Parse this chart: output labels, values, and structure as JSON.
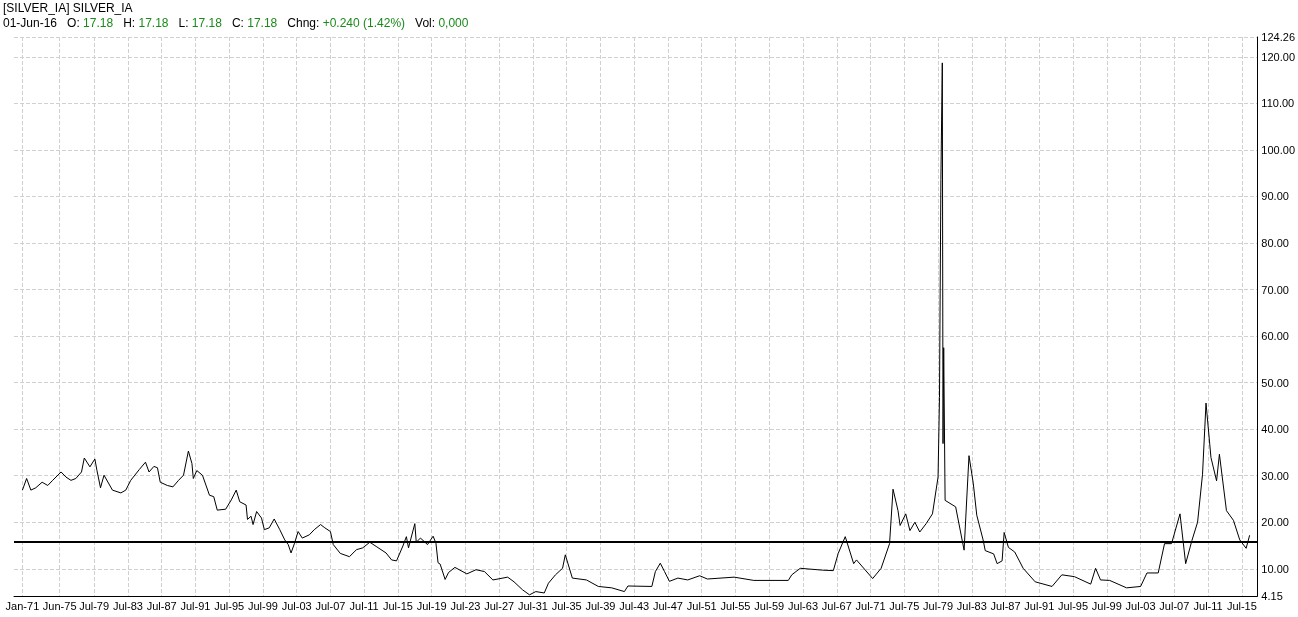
{
  "chart_data": {
    "type": "line",
    "title": "[SILVER_IA] SILVER_IA",
    "subtitle": "01-Jun-16   O: 17.18   H: 17.18   L: 17.18   C: 17.18   Chng: +0.240 (1.42%)   Vol: 0,000",
    "x": [
      "1871-01",
      "1871-07",
      "1872-01",
      "1872-08",
      "1873-05",
      "1874-01",
      "1874-08",
      "1875-08",
      "1876-03",
      "1876-10",
      "1877-05",
      "1878-01",
      "1878-05",
      "1879-01",
      "1879-08",
      "1879-11",
      "1880-04",
      "1880-09",
      "1881-09",
      "1882-09",
      "1883-04",
      "1883-11",
      "1884-11",
      "1885-08",
      "1886-01",
      "1886-08",
      "1887-01",
      "1887-05",
      "1888-03",
      "1888-11",
      "1889-07",
      "1890-02",
      "1890-09",
      "1891-02",
      "1891-04",
      "1891-09",
      "1892-05",
      "1893-03",
      "1893-09",
      "1894-02",
      "1895-02",
      "1895-10",
      "1896-05",
      "1896-10",
      "1897-07",
      "1897-09",
      "1898-02",
      "1898-05",
      "1898-10",
      "1899-05",
      "1899-09",
      "1900-04",
      "1900-11",
      "1901-07",
      "1902-02",
      "1902-07",
      "1902-11",
      "1903-04",
      "1903-09",
      "1904-03",
      "1905-01",
      "1905-08",
      "1906-05",
      "1906-11",
      "1907-07",
      "1907-11",
      "1908-09",
      "1909-10",
      "1910-08",
      "1911-05",
      "1912-03",
      "1913-01",
      "1914-02",
      "1914-10",
      "1915-05",
      "1916-02",
      "1916-07",
      "1916-10",
      "1917-07",
      "1917-09",
      "1918-03",
      "1919-01",
      "1919-09",
      "1920-01",
      "1920-04",
      "1920-07",
      "1921-02",
      "1921-07",
      "1922-04",
      "1923-09",
      "1924-10",
      "1925-10",
      "1926-10",
      "1928-07",
      "1929-04",
      "1930-04",
      "1931-02",
      "1931-11",
      "1932-11",
      "1933-05",
      "1934-03",
      "1935-01",
      "1935-05",
      "1936-03",
      "1937-11",
      "1939-04",
      "1940-11",
      "1942-05",
      "1942-10",
      "1945-08",
      "1946-01",
      "1946-08",
      "1947-02",
      "1947-09",
      "1948-09",
      "1949-11",
      "1951-04",
      "1952-03",
      "1955-05",
      "1957-09",
      "1961-10",
      "1962-03",
      "1963-03",
      "1965-11",
      "1967-02",
      "1967-09",
      "1968-07",
      "1969-07",
      "1969-11",
      "1971-10",
      "1972-10",
      "1973-10",
      "1974-03",
      "1974-10",
      "1975-01",
      "1975-09",
      "1976-03",
      "1976-10",
      "1977-05",
      "1978-02",
      "1978-11",
      "1979-07",
      "1979-09",
      "1979-11",
      "1980-01",
      "1980-02",
      "1980-03",
      "1980-05",
      "1981-08",
      "1982-08",
      "1983-03",
      "1983-09",
      "1984-02",
      "1984-11",
      "1985-02",
      "1986-02",
      "1986-07",
      "1987-02",
      "1987-05",
      "1987-11",
      "1988-08",
      "1989-08",
      "1991-01",
      "1993-01",
      "1994-03",
      "1995-09",
      "1997-08",
      "1998-03",
      "1998-10",
      "1999-11",
      "2001-11",
      "2003-07",
      "2004-04",
      "2005-08",
      "2006-05",
      "2007-03",
      "2008-03",
      "2008-11",
      "2009-08",
      "2010-04",
      "2010-11",
      "2011-04",
      "2011-11",
      "2012-07",
      "2012-11",
      "2013-09",
      "2014-07",
      "2015-04",
      "2016-01",
      "2016-06"
    ],
    "values": [
      26.9,
      29.4,
      26.9,
      27.4,
      28.6,
      27.9,
      29.0,
      30.8,
      29.7,
      29.0,
      29.4,
      30.8,
      33.8,
      31.9,
      33.6,
      31.1,
      27.4,
      30.1,
      26.9,
      26.3,
      26.9,
      29.0,
      31.3,
      32.9,
      30.8,
      32.0,
      31.7,
      28.6,
      27.9,
      27.6,
      29.0,
      30.1,
      35.3,
      32.6,
      29.4,
      31.1,
      30.1,
      25.8,
      25.5,
      22.6,
      22.8,
      24.8,
      26.9,
      24.4,
      23.7,
      20.6,
      21.3,
      19.5,
      22.3,
      20.9,
      18.4,
      18.8,
      20.7,
      18.4,
      16.2,
      15.2,
      13.4,
      15.5,
      18.0,
      16.6,
      17.3,
      18.4,
      19.5,
      18.8,
      18.0,
      15.2,
      13.3,
      12.6,
      14.1,
      14.5,
      15.7,
      14.7,
      13.4,
      11.9,
      11.7,
      14.9,
      16.9,
      14.5,
      19.7,
      15.7,
      16.6,
      15.2,
      17.0,
      15.5,
      11.3,
      11.0,
      7.7,
      9.2,
      10.3,
      8.9,
      9.8,
      9.4,
      7.6,
      8.2,
      7.2,
      5.5,
      4.4,
      5.1,
      4.8,
      6.9,
      8.7,
      10.1,
      13.0,
      8.0,
      7.6,
      6.2,
      5.9,
      5.1,
      6.3,
      6.2,
      9.4,
      11.2,
      9.4,
      7.3,
      8.0,
      7.6,
      8.5,
      7.8,
      8.2,
      7.5,
      7.5,
      8.7,
      10.1,
      9.7,
      9.6,
      13.3,
      16.9,
      11.1,
      11.9,
      7.9,
      10.1,
      15.4,
      27.1,
      22.5,
      19.3,
      21.8,
      18.2,
      20.0,
      17.9,
      19.7,
      21.8,
      29.7,
      46.8,
      93.7,
      118.7,
      36.9,
      57.5,
      24.7,
      23.3,
      14.0,
      34.3,
      28.4,
      21.5,
      16.2,
      13.9,
      13.2,
      11.1,
      11.7,
      17.8,
      14.6,
      13.6,
      10.1,
      7.2,
      6.2,
      8.7,
      8.3,
      6.7,
      10.1,
      7.6,
      7.5,
      5.9,
      6.2,
      9.1,
      9.1,
      15.4,
      15.4,
      21.8,
      11.1,
      16.1,
      20.0,
      30.3,
      45.6,
      33.9,
      28.9,
      34.6,
      22.5,
      20.4,
      16.2,
      14.4,
      17.2
    ],
    "color": "#000000",
    "xlim": [
      "1870-01",
      "2017-05"
    ],
    "xticks": [
      {
        "value": "1871-01",
        "label": "Jan-71"
      },
      {
        "value": "1875-06",
        "label": "Jun-75"
      },
      {
        "value": "1879-07",
        "label": "Jul-79"
      },
      {
        "value": "1883-07",
        "label": "Jul-83"
      },
      {
        "value": "1887-07",
        "label": "Jul-87"
      },
      {
        "value": "1891-07",
        "label": "Jul-91"
      },
      {
        "value": "1895-07",
        "label": "Jul-95"
      },
      {
        "value": "1899-07",
        "label": "Jul-99"
      },
      {
        "value": "1903-07",
        "label": "Jul-03"
      },
      {
        "value": "1907-07",
        "label": "Jul-07"
      },
      {
        "value": "1911-07",
        "label": "Jul-11"
      },
      {
        "value": "1915-07",
        "label": "Jul-15"
      },
      {
        "value": "1919-07",
        "label": "Jul-19"
      },
      {
        "value": "1923-07",
        "label": "Jul-23"
      },
      {
        "value": "1927-07",
        "label": "Jul-27"
      },
      {
        "value": "1931-07",
        "label": "Jul-31"
      },
      {
        "value": "1935-07",
        "label": "Jul-35"
      },
      {
        "value": "1939-07",
        "label": "Jul-39"
      },
      {
        "value": "1943-07",
        "label": "Jul-43"
      },
      {
        "value": "1947-07",
        "label": "Jul-47"
      },
      {
        "value": "1951-07",
        "label": "Jul-51"
      },
      {
        "value": "1955-07",
        "label": "Jul-55"
      },
      {
        "value": "1959-07",
        "label": "Jul-59"
      },
      {
        "value": "1963-07",
        "label": "Jul-63"
      },
      {
        "value": "1967-07",
        "label": "Jul-67"
      },
      {
        "value": "1971-07",
        "label": "Jul-71"
      },
      {
        "value": "1975-07",
        "label": "Jul-75"
      },
      {
        "value": "1979-07",
        "label": "Jul-79"
      },
      {
        "value": "1983-07",
        "label": "Jul-83"
      },
      {
        "value": "1987-07",
        "label": "Jul-87"
      },
      {
        "value": "1991-07",
        "label": "Jul-91"
      },
      {
        "value": "1995-07",
        "label": "Jul-95"
      },
      {
        "value": "1999-07",
        "label": "Jul-99"
      },
      {
        "value": "2003-07",
        "label": "Jul-03"
      },
      {
        "value": "2007-07",
        "label": "Jul-07"
      },
      {
        "value": "2011-07",
        "label": "Jul-11"
      },
      {
        "value": "2015-07",
        "label": "Jul-15"
      }
    ],
    "ylim": [
      4.15,
      124.26
    ],
    "yticks": [
      4.15,
      {
        "value": 10,
        "label": "10.00"
      },
      {
        "value": 20,
        "label": "20.00"
      },
      {
        "value": 30,
        "label": "30.00"
      },
      {
        "value": 40,
        "label": "40.00"
      },
      {
        "value": 50,
        "label": "50.00"
      },
      {
        "value": 60,
        "label": "60.00"
      },
      {
        "value": 70,
        "label": "70.00"
      },
      {
        "value": 80,
        "label": "80.00"
      },
      {
        "value": 90,
        "label": "90.00"
      },
      {
        "value": 100,
        "label": "100.00"
      },
      {
        "value": 110,
        "label": "110.00"
      },
      {
        "value": 120,
        "label": "120.00"
      },
      124.26
    ],
    "ref_lines": [
      {
        "axis": "y",
        "value": 15.8,
        "color": "#000000"
      }
    ],
    "grid": true,
    "marker": "none",
    "line_style": "solid"
  }
}
